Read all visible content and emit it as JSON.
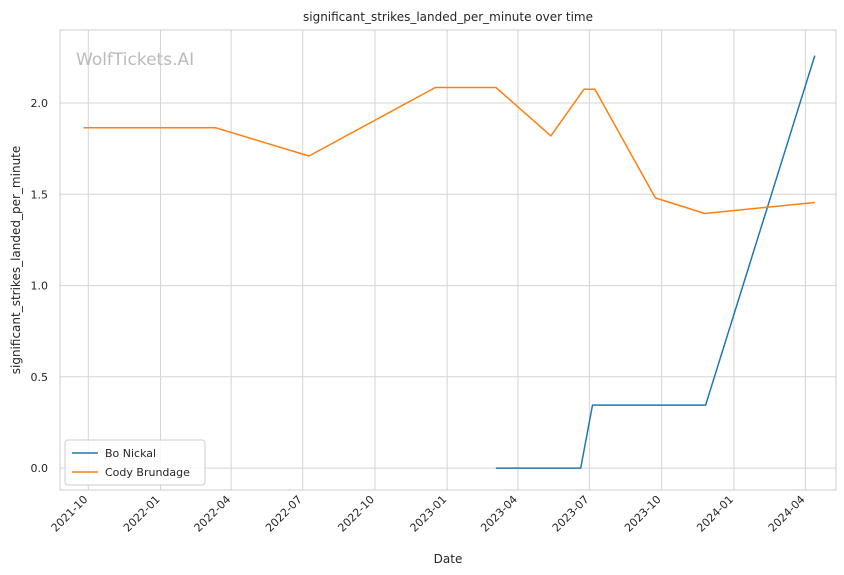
{
  "chart_data": {
    "type": "line",
    "title": "significant_strikes_landed_per_minute over time",
    "xlabel": "Date",
    "ylabel": "significant_strikes_landed_per_minute",
    "watermark": "WolfTickets.AI",
    "x_ticks": [
      "2021-10",
      "2022-01",
      "2022-04",
      "2022-07",
      "2022-10",
      "2023-01",
      "2023-04",
      "2023-07",
      "2023-10",
      "2024-01",
      "2024-04"
    ],
    "y_ticks": [
      "0.0",
      "0.5",
      "1.0",
      "1.5",
      "2.0"
    ],
    "xlim": [
      "2021-08-26",
      "2024-05-10"
    ],
    "ylim": [
      -0.12,
      2.4
    ],
    "grid": true,
    "legend": "lower-left",
    "series": [
      {
        "name": "Bo Nickal",
        "color": "#1f77b4",
        "x": [
          "2023-03-04",
          "2023-06-20",
          "2023-07-05",
          "2023-11-26",
          "2024-04-13"
        ],
        "y": [
          0.0,
          0.0,
          0.345,
          0.345,
          2.26
        ]
      },
      {
        "name": "Cody Brundage",
        "color": "#ff7f0e",
        "x": [
          "2021-09-25",
          "2022-03-12",
          "2022-07-09",
          "2022-12-17",
          "2023-03-04",
          "2023-05-13",
          "2023-06-24",
          "2023-07-08",
          "2023-09-23",
          "2023-11-25",
          "2024-04-13"
        ],
        "y": [
          1.865,
          1.865,
          1.71,
          2.085,
          2.085,
          1.82,
          2.075,
          2.075,
          1.48,
          1.395,
          1.455
        ]
      }
    ]
  }
}
